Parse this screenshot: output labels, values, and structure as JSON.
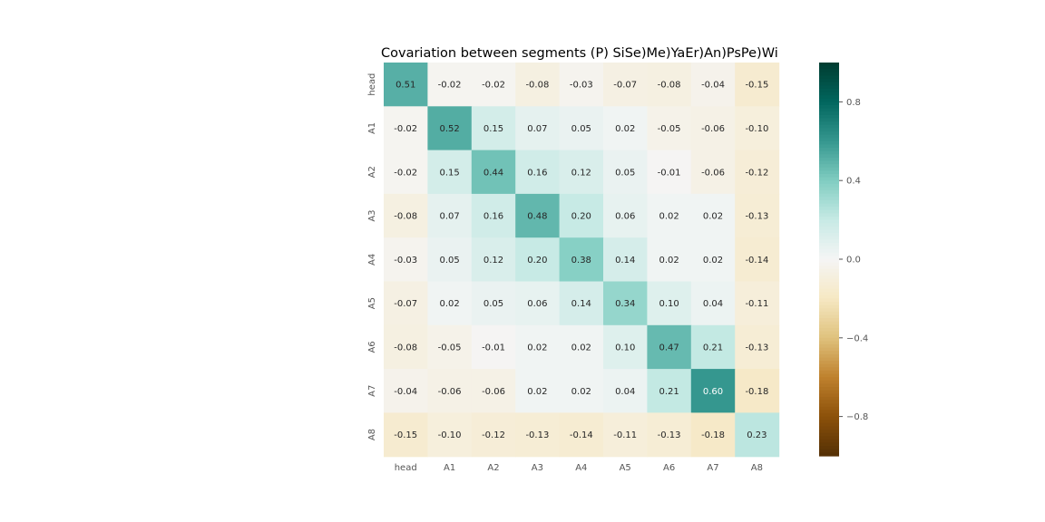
{
  "chart_data": {
    "type": "heatmap",
    "title": "Covariation between segments  (P) SiSe)Me)YaEr)An)PsPe)Wi",
    "row_labels": [
      "head",
      "A1",
      "A2",
      "A3",
      "A4",
      "A5",
      "A6",
      "A7",
      "A8"
    ],
    "col_labels": [
      "head",
      "A1",
      "A2",
      "A3",
      "A4",
      "A5",
      "A6",
      "A7",
      "A8"
    ],
    "values": [
      [
        0.51,
        -0.02,
        -0.02,
        -0.08,
        -0.03,
        -0.07,
        -0.08,
        -0.04,
        -0.15
      ],
      [
        -0.02,
        0.52,
        0.15,
        0.07,
        0.05,
        0.02,
        -0.05,
        -0.06,
        -0.1
      ],
      [
        -0.02,
        0.15,
        0.44,
        0.16,
        0.12,
        0.05,
        -0.01,
        -0.06,
        -0.12
      ],
      [
        -0.08,
        0.07,
        0.16,
        0.48,
        0.2,
        0.06,
        0.02,
        0.02,
        -0.13
      ],
      [
        -0.03,
        0.05,
        0.12,
        0.2,
        0.38,
        0.14,
        0.02,
        0.02,
        -0.14
      ],
      [
        -0.07,
        0.02,
        0.05,
        0.06,
        0.14,
        0.34,
        0.1,
        0.04,
        -0.11
      ],
      [
        -0.08,
        -0.05,
        -0.01,
        0.02,
        0.02,
        0.1,
        0.47,
        0.21,
        -0.13
      ],
      [
        -0.04,
        -0.06,
        -0.06,
        0.02,
        0.02,
        0.04,
        0.21,
        0.6,
        -0.18
      ],
      [
        -0.15,
        -0.1,
        -0.12,
        -0.13,
        -0.14,
        -0.11,
        -0.13,
        -0.18,
        0.23
      ]
    ],
    "colormap": "BrBG",
    "vmin": -1.0,
    "vmax": 1.0,
    "colorbar_ticks": [
      0.8,
      0.4,
      0.0,
      -0.4,
      -0.8
    ],
    "colorbar_tick_labels": [
      "0.8",
      "0.4",
      "0.0",
      "−0.4",
      "−0.8"
    ],
    "annotation_format": "0.00",
    "grid": false,
    "legend": "colorbar-right"
  }
}
